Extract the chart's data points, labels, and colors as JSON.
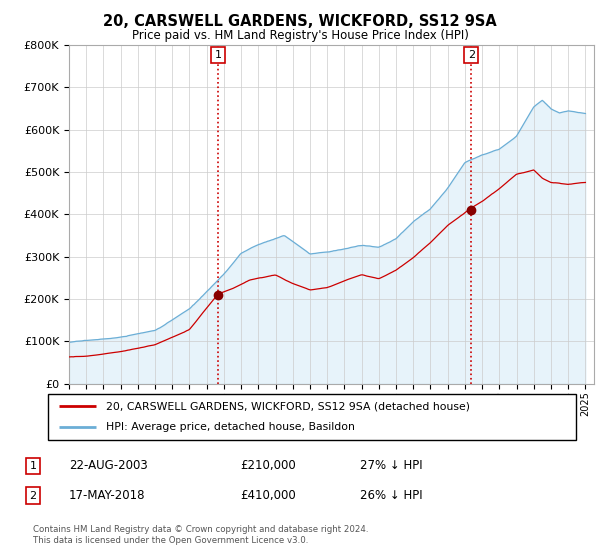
{
  "title": "20, CARSWELL GARDENS, WICKFORD, SS12 9SA",
  "subtitle": "Price paid vs. HM Land Registry's House Price Index (HPI)",
  "hpi_label": "HPI: Average price, detached house, Basildon",
  "property_label": "20, CARSWELL GARDENS, WICKFORD, SS12 9SA (detached house)",
  "sale1_date": "22-AUG-2003",
  "sale1_price": "£210,000",
  "sale1_hpi": "27% ↓ HPI",
  "sale2_date": "17-MAY-2018",
  "sale2_price": "£410,000",
  "sale2_hpi": "26% ↓ HPI",
  "footer": "Contains HM Land Registry data © Crown copyright and database right 2024.\nThis data is licensed under the Open Government Licence v3.0.",
  "sale1_x": 2003.65,
  "sale1_y": 210000,
  "sale2_x": 2018.37,
  "sale2_y": 410000,
  "hpi_color": "#6baed6",
  "hpi_fill_color": "#ddeeff",
  "price_color": "#cc0000",
  "vline_color": "#cc0000",
  "marker_color": "#cc0000",
  "ylim": [
    0,
    800000
  ],
  "xlim_start": 1995,
  "xlim_end": 2025.5,
  "yticks": [
    0,
    100000,
    200000,
    300000,
    400000,
    500000,
    600000,
    700000,
    800000
  ],
  "ytick_labels": [
    "£0",
    "£100K",
    "£200K",
    "£300K",
    "£400K",
    "£500K",
    "£600K",
    "£700K",
    "£800K"
  ]
}
